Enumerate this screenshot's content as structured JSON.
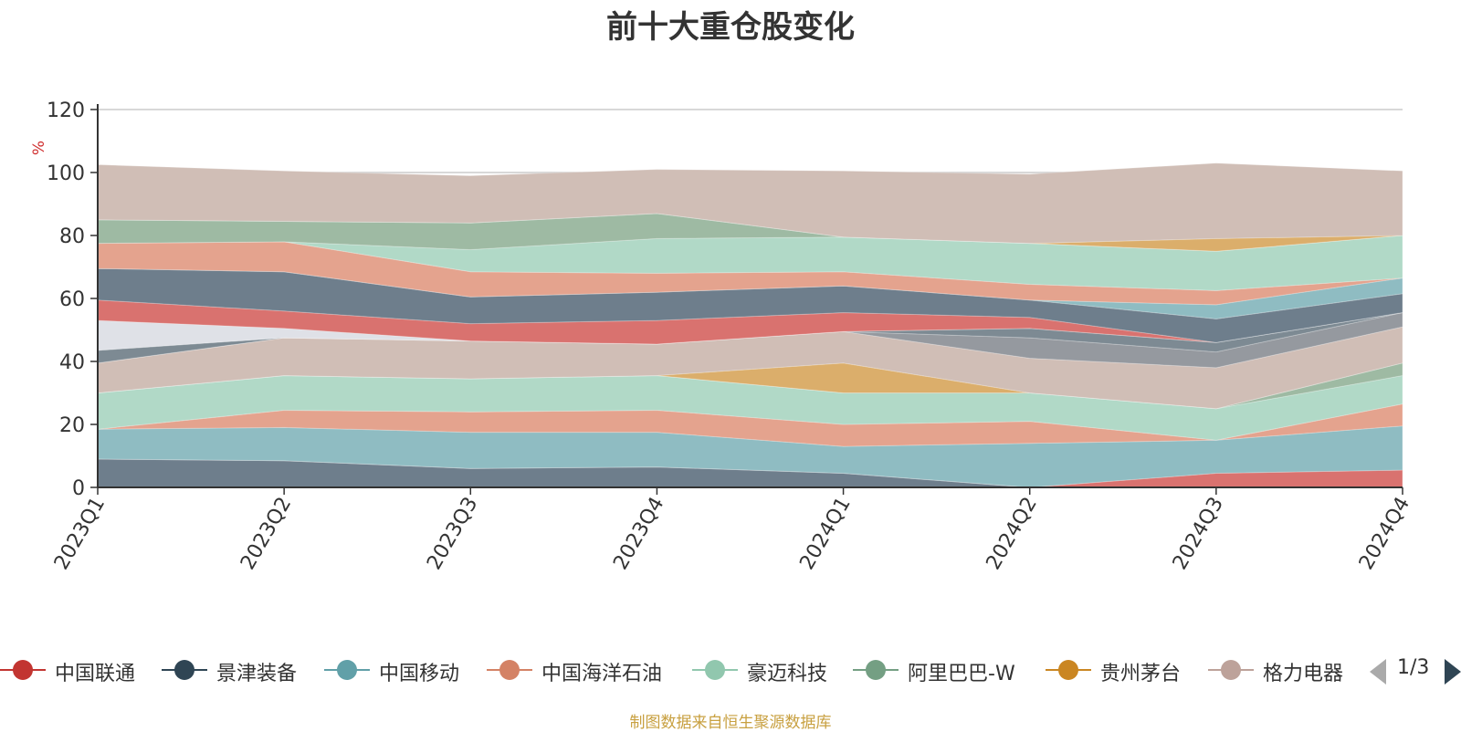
{
  "chart_data": {
    "type": "area",
    "title": "前十大重仓股变化",
    "ylabel": "%",
    "ylim": [
      0,
      120
    ],
    "yticks": [
      0,
      20,
      40,
      60,
      80,
      100,
      120
    ],
    "grid": true,
    "stacked": true,
    "categories": [
      "2023Q1",
      "2023Q2",
      "2023Q3",
      "2023Q4",
      "2024Q1",
      "2024Q2",
      "2024Q3",
      "2024Q4"
    ],
    "series": [
      {
        "name": "",
        "color": "#6e7e8c",
        "values": [
          9,
          8.5,
          6,
          6.5,
          4.5,
          0,
          0,
          0
        ]
      },
      {
        "name": "中国联通",
        "color": "#d9726f",
        "values": [
          0,
          0,
          0,
          0,
          0,
          0,
          4.5,
          5.5
        ]
      },
      {
        "name": "中国移动",
        "color": "#8fbcc2",
        "values": [
          9.5,
          10.5,
          11.5,
          11,
          8.5,
          14,
          10.5,
          14
        ]
      },
      {
        "name": "中国海洋石油",
        "color": "#e4a38e",
        "values": [
          0,
          5.5,
          6.5,
          7,
          7,
          7,
          0,
          7
        ]
      },
      {
        "name": "豪迈科技",
        "color": "#b1d9c7",
        "values": [
          11.5,
          11,
          10.5,
          11,
          10,
          9,
          10,
          9
        ]
      },
      {
        "name": "阿里巴巴-W",
        "color": "#9ebaa3",
        "values": [
          0,
          0,
          0,
          0,
          0,
          0,
          0,
          4
        ]
      },
      {
        "name": "贵州茅台",
        "color": "#dbae6b",
        "values": [
          0,
          0,
          0,
          0,
          9.5,
          0,
          0,
          0
        ]
      },
      {
        "name": "格力电器",
        "color": "#d0beb6",
        "values": [
          9.5,
          12,
          12,
          10,
          10,
          11,
          13,
          11.5
        ]
      },
      {
        "name": "",
        "color": "#95999f",
        "values": [
          0,
          0,
          0,
          0,
          0,
          6.5,
          5,
          4.5
        ]
      },
      {
        "name": "",
        "color": "#7d8a93",
        "values": [
          4,
          0,
          0,
          0,
          0,
          3,
          3,
          0
        ]
      },
      {
        "name": "",
        "color": "#dfe1e7",
        "values": [
          9.5,
          3,
          0,
          0,
          0,
          0,
          0,
          0
        ]
      },
      {
        "name": "",
        "color": "#d9726f",
        "values": [
          6.5,
          5.5,
          5.5,
          7.5,
          6,
          3.5,
          0,
          0
        ]
      },
      {
        "name": "",
        "color": "#6e7e8c",
        "values": [
          10,
          12.5,
          8.5,
          9,
          8.5,
          5.5,
          7.5,
          6
        ]
      },
      {
        "name": "",
        "color": "#8fbcc2",
        "values": [
          0,
          0,
          0,
          0,
          0,
          0,
          4.5,
          5
        ]
      },
      {
        "name": "",
        "color": "#e4a38e",
        "values": [
          8,
          9.5,
          8,
          6,
          4.5,
          5,
          4.5,
          0
        ]
      },
      {
        "name": "",
        "color": "#b1d9c7",
        "values": [
          0,
          0,
          7,
          11,
          11,
          13,
          12.5,
          13.5
        ]
      },
      {
        "name": "",
        "color": "#9ebaa3",
        "values": [
          7.5,
          6.5,
          8.5,
          8,
          0,
          0,
          0,
          0
        ]
      },
      {
        "name": "",
        "color": "#dbae6b",
        "values": [
          0,
          0,
          0,
          0,
          0,
          0,
          4,
          0
        ]
      },
      {
        "name": "",
        "color": "#d0beb6",
        "values": [
          17.5,
          16,
          15,
          14,
          21,
          22,
          24,
          20.5
        ]
      }
    ]
  },
  "legend": {
    "items": [
      {
        "label": "中国联通",
        "color": "#c23531"
      },
      {
        "label": "景津装备",
        "color": "#2f4554"
      },
      {
        "label": "中国移动",
        "color": "#61a0a8"
      },
      {
        "label": "中国海洋石油",
        "color": "#d48265"
      },
      {
        "label": "豪迈科技",
        "color": "#91c7ae"
      },
      {
        "label": "阿里巴巴-W",
        "color": "#749f83"
      },
      {
        "label": "贵州茅台",
        "color": "#ca8622"
      },
      {
        "label": "格力电器",
        "color": "#bda29a"
      }
    ],
    "page": "1/3"
  },
  "source_note": "制图数据来自恒生聚源数据库"
}
